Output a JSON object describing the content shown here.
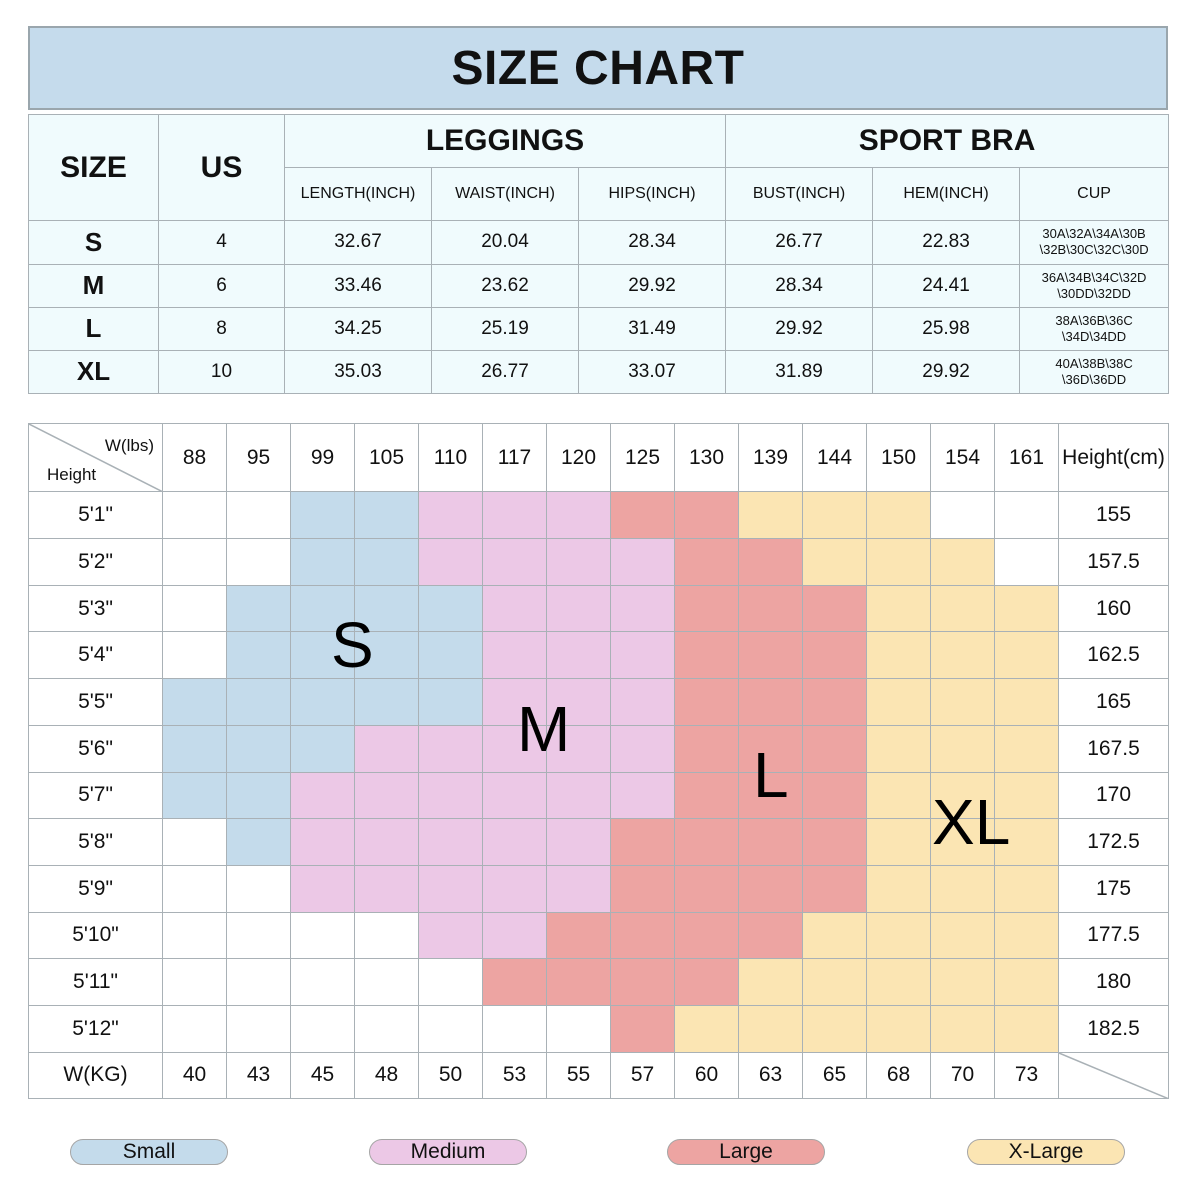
{
  "title": "SIZE CHART",
  "colors": {
    "Small": "#c4dbeb",
    "Medium": "#ecc8e6",
    "Large": "#eda4a2",
    "X-Large": "#fbe5b3",
    "title_bg": "#c5dbec",
    "table_bg": "#f0fbfd"
  },
  "size_table": {
    "size_header": "SIZE",
    "us_header": "US",
    "leggings_header": "LEGGINGS",
    "bra_header": "SPORT BRA",
    "leggings_columns": [
      "LENGTH(INCH)",
      "WAIST(INCH)",
      "HIPS(INCH)"
    ],
    "bra_columns": [
      "BUST(INCH)",
      "HEM(INCH)",
      "CUP"
    ],
    "rows": [
      {
        "size": "S",
        "us": "4",
        "length": "32.67",
        "waist": "20.04",
        "hips": "28.34",
        "bust": "26.77",
        "hem": "22.83",
        "cup_line1": "30A\\32A\\34A\\30B",
        "cup_line2": "\\32B\\30C\\32C\\30D"
      },
      {
        "size": "M",
        "us": "6",
        "length": "33.46",
        "waist": "23.62",
        "hips": "29.92",
        "bust": "28.34",
        "hem": "24.41",
        "cup_line1": "36A\\34B\\34C\\32D",
        "cup_line2": "\\30DD\\32DD"
      },
      {
        "size": "L",
        "us": "8",
        "length": "34.25",
        "waist": "25.19",
        "hips": "31.49",
        "bust": "29.92",
        "hem": "25.98",
        "cup_line1": "38A\\36B\\36C",
        "cup_line2": "\\34D\\34DD"
      },
      {
        "size": "XL",
        "us": "10",
        "length": "35.03",
        "waist": "26.77",
        "hips": "33.07",
        "bust": "31.89",
        "hem": "29.92",
        "cup_line1": "40A\\38B\\38C",
        "cup_line2": "\\36D\\36DD"
      }
    ]
  },
  "chart_data": {
    "type": "heatmap",
    "corner_x_label": "W(lbs)",
    "corner_y_label": "Height",
    "right_header": "Height(cm)",
    "bottom_label": "W(KG)",
    "weights_lbs": [
      "88",
      "95",
      "99",
      "105",
      "110",
      "117",
      "120",
      "125",
      "130",
      "139",
      "144",
      "150",
      "154",
      "161"
    ],
    "weights_kg": [
      "40",
      "43",
      "45",
      "48",
      "50",
      "53",
      "55",
      "57",
      "60",
      "63",
      "65",
      "68",
      "70",
      "73"
    ],
    "heights_ft": [
      "5'1\"",
      "5'2\"",
      "5'3\"",
      "5'4\"",
      "5'5\"",
      "5'6\"",
      "5'7\"",
      "5'8\"",
      "5'9\"",
      "5'10\"",
      "5'11\"",
      "5'12\""
    ],
    "heights_cm": [
      "155",
      "157.5",
      "160",
      "162.5",
      "165",
      "167.5",
      "170",
      "172.5",
      "175",
      "177.5",
      "180",
      "182.5"
    ],
    "grid": [
      [
        "",
        "",
        "S",
        "S",
        "M",
        "M",
        "M",
        "L",
        "L",
        "XL",
        "XL",
        "XL",
        "",
        ""
      ],
      [
        "",
        "",
        "S",
        "S",
        "M",
        "M",
        "M",
        "M",
        "L",
        "L",
        "XL",
        "XL",
        "XL",
        ""
      ],
      [
        "",
        "S",
        "S",
        "S",
        "S",
        "M",
        "M",
        "M",
        "L",
        "L",
        "L",
        "XL",
        "XL",
        "XL"
      ],
      [
        "",
        "S",
        "S",
        "S",
        "S",
        "M",
        "M",
        "M",
        "L",
        "L",
        "L",
        "XL",
        "XL",
        "XL"
      ],
      [
        "S",
        "S",
        "S",
        "S",
        "S",
        "M",
        "M",
        "M",
        "L",
        "L",
        "L",
        "XL",
        "XL",
        "XL"
      ],
      [
        "S",
        "S",
        "S",
        "M",
        "M",
        "M",
        "M",
        "M",
        "L",
        "L",
        "L",
        "XL",
        "XL",
        "XL"
      ],
      [
        "S",
        "S",
        "M",
        "M",
        "M",
        "M",
        "M",
        "M",
        "L",
        "L",
        "L",
        "XL",
        "XL",
        "XL"
      ],
      [
        "",
        "S",
        "M",
        "M",
        "M",
        "M",
        "M",
        "L",
        "L",
        "L",
        "L",
        "XL",
        "XL",
        "XL"
      ],
      [
        "",
        "",
        "M",
        "M",
        "M",
        "M",
        "M",
        "L",
        "L",
        "L",
        "L",
        "XL",
        "XL",
        "XL"
      ],
      [
        "",
        "",
        "",
        "",
        "M",
        "M",
        "L",
        "L",
        "L",
        "L",
        "XL",
        "XL",
        "XL",
        "XL"
      ],
      [
        "",
        "",
        "",
        "",
        "",
        "L",
        "L",
        "L",
        "L",
        "XL",
        "XL",
        "XL",
        "XL",
        "XL"
      ],
      [
        "",
        "",
        "",
        "",
        "",
        "",
        "",
        "L",
        "XL",
        "XL",
        "XL",
        "XL",
        "XL",
        "XL"
      ]
    ],
    "zone_labels": [
      "S",
      "M",
      "L",
      "XL"
    ]
  },
  "legend": [
    {
      "key": "S",
      "label": "Small"
    },
    {
      "key": "M",
      "label": "Medium"
    },
    {
      "key": "L",
      "label": "Large"
    },
    {
      "key": "XL",
      "label": "X-Large"
    }
  ]
}
